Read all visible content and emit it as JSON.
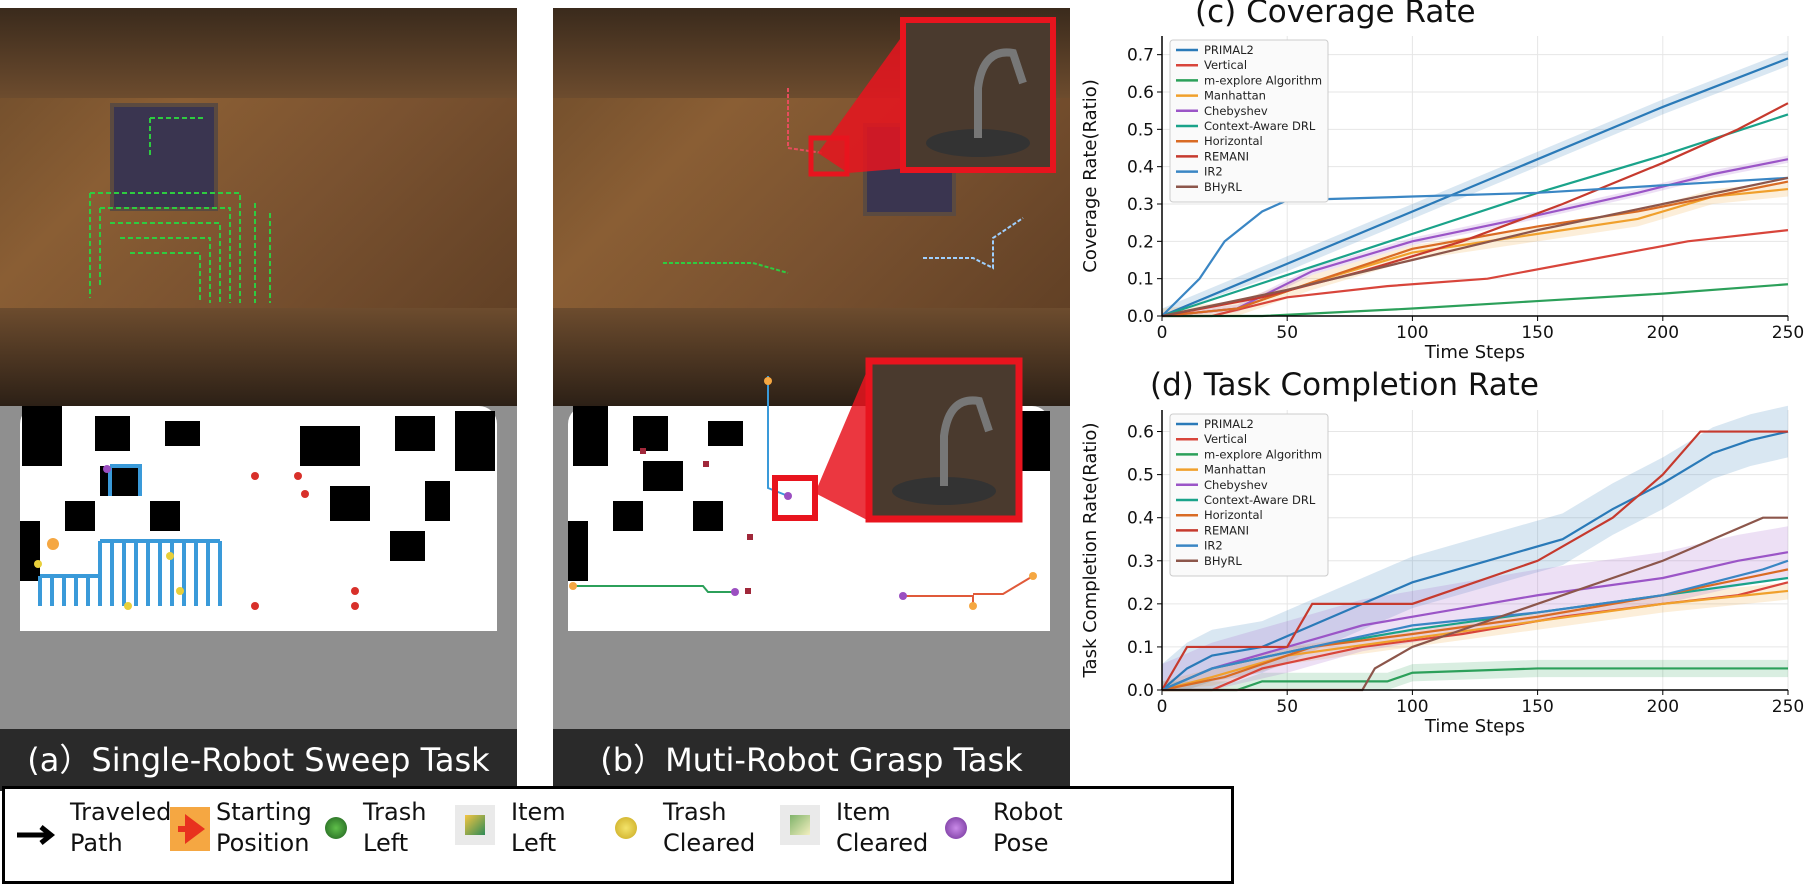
{
  "panels": {
    "a_caption": "(a）Single-Robot Sweep Task",
    "b_caption": "(b）Muti-Robot Grasp Task"
  },
  "legend": {
    "traveled_path": [
      "Traveled",
      "Path"
    ],
    "starting_position": [
      "Starting",
      "Position"
    ],
    "trash_left": [
      "Trash",
      "Left"
    ],
    "item_left": [
      "Item",
      "Left"
    ],
    "trash_cleared": [
      "Trash",
      "Cleared"
    ],
    "item_cleared": [
      "Item",
      "Cleared"
    ],
    "robot_pose": [
      "Robot",
      "Pose"
    ]
  },
  "colors": {
    "path_blue": "#3a9ad9",
    "path_green": "#2ecc40",
    "start_orange": "#f5a742",
    "start_arrow": "#e8321e",
    "trash_left": "#2e7d32",
    "trash_cleared": "#e8cf3a",
    "robot_pose": "#9b4fc1",
    "highlight_red": "#e8141e"
  },
  "chart_data": [
    {
      "type": "line",
      "title": "(c) Coverage Rate",
      "xlabel": "Time Steps",
      "ylabel": "Coverage Rate(Ratio)",
      "xlim": [
        0,
        250
      ],
      "ylim": [
        0,
        0.75
      ],
      "xticks": [
        0,
        50,
        100,
        150,
        200,
        250
      ],
      "yticks": [
        0.0,
        0.1,
        0.2,
        0.3,
        0.4,
        0.5,
        0.6,
        0.7
      ],
      "grid": true,
      "legend_position": "top-left",
      "series": [
        {
          "name": "PRIMAL2",
          "color": "#2a7ab8",
          "band": 0.02,
          "x": [
            0,
            50,
            100,
            150,
            200,
            250
          ],
          "y": [
            0.0,
            0.14,
            0.28,
            0.42,
            0.56,
            0.69
          ]
        },
        {
          "name": "Vertical",
          "color": "#d8453b",
          "band": 0,
          "x": [
            0,
            20,
            50,
            90,
            130,
            170,
            210,
            250
          ],
          "y": [
            0.0,
            0.0,
            0.05,
            0.08,
            0.1,
            0.15,
            0.2,
            0.23
          ]
        },
        {
          "name": "m-explore Algorithm",
          "color": "#2ca05a",
          "band": 0,
          "x": [
            0,
            40,
            100,
            150,
            200,
            250
          ],
          "y": [
            0.0,
            0.0,
            0.02,
            0.04,
            0.06,
            0.085
          ]
        },
        {
          "name": "Manhattan",
          "color": "#f0a02c",
          "band": 0.02,
          "x": [
            0,
            30,
            60,
            100,
            150,
            190,
            220,
            250
          ],
          "y": [
            0.0,
            0.02,
            0.09,
            0.17,
            0.22,
            0.26,
            0.32,
            0.34
          ]
        },
        {
          "name": "Chebyshev",
          "color": "#9b55c7",
          "band": 0.01,
          "x": [
            0,
            30,
            60,
            100,
            150,
            190,
            220,
            250
          ],
          "y": [
            0.0,
            0.02,
            0.12,
            0.2,
            0.27,
            0.33,
            0.38,
            0.42
          ]
        },
        {
          "name": "Context-Aware DRL",
          "color": "#1aa38a",
          "band": 0,
          "x": [
            0,
            50,
            100,
            150,
            200,
            250
          ],
          "y": [
            0.0,
            0.11,
            0.22,
            0.33,
            0.43,
            0.54
          ]
        },
        {
          "name": "Horizontal",
          "color": "#d96b24",
          "band": 0,
          "x": [
            0,
            30,
            60,
            100,
            150,
            190,
            220,
            250
          ],
          "y": [
            0.0,
            0.02,
            0.09,
            0.18,
            0.24,
            0.28,
            0.32,
            0.36
          ]
        },
        {
          "name": "REMANI",
          "color": "#c63a2e",
          "band": 0,
          "x": [
            0,
            40,
            80,
            120,
            160,
            200,
            230,
            250
          ],
          "y": [
            0.0,
            0.05,
            0.12,
            0.2,
            0.3,
            0.41,
            0.5,
            0.57
          ]
        },
        {
          "name": "IR2",
          "color": "#3a86c4",
          "band": 0,
          "x": [
            0,
            15,
            25,
            40,
            50,
            100,
            150,
            200,
            250
          ],
          "y": [
            0.0,
            0.1,
            0.2,
            0.28,
            0.31,
            0.32,
            0.33,
            0.35,
            0.37
          ]
        },
        {
          "name": "BHyRL",
          "color": "#8c564b",
          "band": 0,
          "x": [
            0,
            50,
            100,
            150,
            200,
            250
          ],
          "y": [
            0.0,
            0.07,
            0.15,
            0.23,
            0.3,
            0.37
          ]
        }
      ]
    },
    {
      "type": "line",
      "title": "(d) Task Completion Rate",
      "xlabel": "Time Steps",
      "ylabel": "Task Completion Rate(Ratio)",
      "xlim": [
        0,
        250
      ],
      "ylim": [
        0,
        0.65
      ],
      "xticks": [
        0,
        50,
        100,
        150,
        200,
        250
      ],
      "yticks": [
        0.0,
        0.1,
        0.2,
        0.3,
        0.4,
        0.5,
        0.6
      ],
      "grid": true,
      "legend_position": "top-left",
      "series": [
        {
          "name": "PRIMAL2",
          "color": "#2a7ab8",
          "band": 0.06,
          "x": [
            0,
            10,
            20,
            40,
            60,
            80,
            100,
            130,
            160,
            180,
            200,
            220,
            235,
            250
          ],
          "y": [
            0.0,
            0.05,
            0.08,
            0.1,
            0.15,
            0.2,
            0.25,
            0.3,
            0.35,
            0.42,
            0.48,
            0.55,
            0.58,
            0.6
          ]
        },
        {
          "name": "Vertical",
          "color": "#d8453b",
          "band": 0,
          "x": [
            0,
            20,
            40,
            80,
            120,
            160,
            200,
            230,
            250
          ],
          "y": [
            0.0,
            0.0,
            0.05,
            0.1,
            0.13,
            0.17,
            0.2,
            0.22,
            0.25
          ]
        },
        {
          "name": "m-explore Algorithm",
          "color": "#2ca05a",
          "band": 0.02,
          "x": [
            0,
            30,
            40,
            90,
            100,
            150,
            200,
            250
          ],
          "y": [
            0.0,
            0.0,
            0.02,
            0.02,
            0.04,
            0.05,
            0.05,
            0.05
          ]
        },
        {
          "name": "Manhattan",
          "color": "#f0a02c",
          "band": 0.02,
          "x": [
            0,
            20,
            50,
            100,
            150,
            200,
            250
          ],
          "y": [
            0.0,
            0.03,
            0.08,
            0.12,
            0.16,
            0.2,
            0.23
          ]
        },
        {
          "name": "Chebyshev",
          "color": "#9b55c7",
          "band": 0.06,
          "x": [
            0,
            20,
            50,
            80,
            110,
            150,
            200,
            230,
            250
          ],
          "y": [
            0.0,
            0.05,
            0.1,
            0.15,
            0.18,
            0.22,
            0.26,
            0.3,
            0.32
          ]
        },
        {
          "name": "Context-Aware DRL",
          "color": "#1aa38a",
          "band": 0,
          "x": [
            0,
            20,
            60,
            100,
            150,
            200,
            250
          ],
          "y": [
            0.0,
            0.05,
            0.1,
            0.14,
            0.18,
            0.22,
            0.26
          ]
        },
        {
          "name": "Horizontal",
          "color": "#d96b24",
          "band": 0,
          "x": [
            0,
            25,
            60,
            100,
            150,
            200,
            250
          ],
          "y": [
            0.0,
            0.03,
            0.1,
            0.13,
            0.17,
            0.22,
            0.28
          ]
        },
        {
          "name": "REMANI",
          "color": "#c63a2e",
          "band": 0,
          "x": [
            0,
            10,
            20,
            50,
            60,
            100,
            150,
            180,
            200,
            215,
            230,
            250
          ],
          "y": [
            0.0,
            0.1,
            0.1,
            0.1,
            0.2,
            0.2,
            0.3,
            0.4,
            0.5,
            0.6,
            0.6,
            0.6
          ]
        },
        {
          "name": "IR2",
          "color": "#3a86c4",
          "band": 0,
          "x": [
            0,
            20,
            60,
            100,
            150,
            200,
            240,
            250
          ],
          "y": [
            0.0,
            0.05,
            0.1,
            0.15,
            0.18,
            0.22,
            0.28,
            0.3
          ]
        },
        {
          "name": "BHyRL",
          "color": "#8c564b",
          "band": 0,
          "x": [
            0,
            80,
            85,
            100,
            150,
            200,
            240,
            250
          ],
          "y": [
            0.0,
            0.0,
            0.05,
            0.1,
            0.2,
            0.3,
            0.4,
            0.4
          ]
        }
      ]
    }
  ]
}
